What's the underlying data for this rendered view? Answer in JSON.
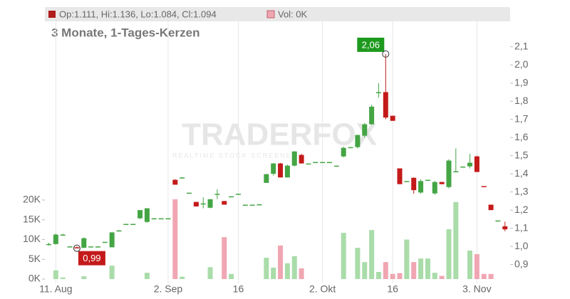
{
  "chart_data": {
    "type": "candlestick",
    "title": "3 Monate, 1-Tages-Kerzen",
    "header": {
      "ohlc": "Op:1.111, Hi:1.136, Lo:1.084, Cl:1.094",
      "volume": "Vol: 0K"
    },
    "watermark": {
      "brand": "TRADERFOX",
      "tagline": "REALTIME STOCK SCREENER"
    },
    "categories": [
      null,
      "11. Aug",
      null,
      null,
      null,
      null,
      null,
      null,
      null,
      null,
      null,
      null,
      null,
      null,
      null,
      null,
      null,
      "2. Sep",
      null,
      null,
      null,
      null,
      null,
      null,
      null,
      null,
      null,
      "16",
      null,
      null,
      null,
      null,
      null,
      null,
      null,
      null,
      null,
      null,
      null,
      "2. Okt",
      null,
      null,
      null,
      null,
      null,
      null,
      null,
      null,
      null,
      "16",
      null,
      null,
      null,
      null,
      null,
      null,
      null,
      null,
      null,
      null,
      null,
      "3. Nov",
      null,
      null,
      null,
      null
    ],
    "open": [
      1.013,
      1.013,
      1.065,
      1.0,
      0.995,
      0.992,
      1.0,
      1.0,
      1.025,
      0.995,
      1.088,
      1.124,
      1.124,
      1.155,
      1.135,
      1.155,
      1.155,
      1.155,
      1.367,
      1.38,
      1.296,
      1.245,
      1.237,
      1.213,
      1.29,
      1.25,
      1.276,
      1.29,
      1.23,
      1.23,
      1.232,
      1.35,
      1.4,
      1.457,
      1.38,
      1.445,
      1.504,
      1.457,
      1.465,
      1.465,
      1.465,
      1.445,
      1.496,
      1.547,
      1.547,
      1.61,
      1.673,
      1.845,
      1.85,
      1.72,
      1.43,
      1.36,
      1.378,
      1.297,
      1.367,
      1.292,
      1.355,
      1.327,
      1.414,
      1.44,
      1.441,
      1.496,
      1.332,
      1.23,
      1.143,
      1.111
    ],
    "high": [
      1.02,
      1.07,
      1.07,
      1.0,
      1.0,
      1.05,
      1.0,
      1.0,
      1.025,
      1.08,
      1.09,
      1.124,
      1.124,
      1.2,
      1.21,
      1.155,
      1.155,
      1.155,
      1.37,
      1.382,
      1.296,
      1.245,
      1.27,
      1.26,
      1.315,
      1.25,
      1.276,
      1.29,
      1.23,
      1.23,
      1.232,
      1.4,
      1.46,
      1.46,
      1.45,
      1.525,
      1.51,
      1.457,
      1.465,
      1.465,
      1.465,
      1.445,
      1.55,
      1.547,
      1.615,
      1.68,
      1.78,
      1.9,
      2.06,
      1.72,
      1.43,
      1.36,
      1.38,
      1.37,
      1.367,
      1.36,
      1.355,
      1.48,
      1.54,
      1.44,
      1.51,
      1.5,
      1.332,
      1.23,
      1.143,
      1.136
    ],
    "low": [
      1.005,
      1.01,
      1.06,
      0.995,
      0.99,
      0.992,
      1.0,
      1.0,
      1.025,
      0.995,
      1.088,
      1.124,
      1.124,
      1.15,
      1.13,
      1.155,
      1.155,
      1.155,
      1.34,
      1.38,
      1.296,
      1.22,
      1.21,
      1.21,
      1.26,
      1.23,
      1.276,
      1.29,
      1.23,
      1.23,
      1.232,
      1.35,
      1.39,
      1.38,
      1.38,
      1.44,
      1.457,
      1.457,
      1.465,
      1.465,
      1.465,
      1.445,
      1.49,
      1.547,
      1.54,
      1.6,
      1.67,
      1.82,
      1.7,
      1.692,
      1.343,
      1.36,
      1.29,
      1.29,
      1.367,
      1.285,
      1.343,
      1.32,
      1.41,
      1.44,
      1.43,
      1.41,
      1.33,
      1.2,
      1.143,
      1.084
    ],
    "close": [
      1.013,
      1.065,
      1.065,
      1.0,
      0.99,
      1.045,
      1.0,
      1.0,
      1.025,
      1.077,
      1.088,
      1.124,
      1.124,
      1.2,
      1.21,
      1.155,
      1.155,
      1.155,
      1.34,
      1.38,
      1.296,
      1.22,
      1.237,
      1.26,
      1.29,
      1.23,
      1.276,
      1.29,
      1.23,
      1.23,
      1.232,
      1.398,
      1.457,
      1.38,
      1.445,
      1.523,
      1.457,
      1.457,
      1.465,
      1.465,
      1.465,
      1.445,
      1.543,
      1.547,
      1.614,
      1.673,
      1.77,
      1.85,
      1.71,
      1.692,
      1.343,
      1.36,
      1.31,
      1.36,
      1.367,
      1.355,
      1.343,
      1.473,
      1.414,
      1.44,
      1.461,
      1.41,
      1.33,
      1.2,
      1.143,
      1.094
    ],
    "volume": [
      0,
      2200,
      400,
      0,
      0,
      700,
      0,
      0,
      0,
      3400,
      0,
      0,
      0,
      0,
      1600,
      0,
      0,
      0,
      20200,
      600,
      0,
      0,
      0,
      3000,
      0,
      10600,
      1300,
      0,
      0,
      0,
      0,
      5400,
      2900,
      8500,
      4000,
      5800,
      2700,
      0,
      0,
      0,
      0,
      0,
      11700,
      0,
      7900,
      4300,
      12400,
      1800,
      4300,
      1300,
      1500,
      10000,
      4300,
      5200,
      5200,
      1600,
      800,
      12600,
      19500,
      0,
      7200,
      6300,
      1300,
      1300,
      0,
      0
    ],
    "ylim": [
      0.82,
      2.24
    ],
    "yticks": [
      {
        "value": 0.9,
        "label": "0,9"
      },
      {
        "value": 1.0,
        "label": "1,0"
      },
      {
        "value": 1.1,
        "label": "1,1"
      },
      {
        "value": 1.2,
        "label": "1,2"
      },
      {
        "value": 1.3,
        "label": "1,3"
      },
      {
        "value": 1.4,
        "label": "1,4"
      },
      {
        "value": 1.5,
        "label": "1,5"
      },
      {
        "value": 1.6,
        "label": "1,6"
      },
      {
        "value": 1.7,
        "label": "1,7"
      },
      {
        "value": 1.8,
        "label": "1,8"
      },
      {
        "value": 1.9,
        "label": "1,9"
      },
      {
        "value": 2.0,
        "label": "2,0"
      },
      {
        "value": 2.1,
        "label": "2,1"
      }
    ],
    "y2lim": [
      0,
      65200
    ],
    "y2ticks": [
      {
        "value": 0,
        "label": "0K"
      },
      {
        "value": 5000,
        "label": "5K"
      },
      {
        "value": 10000,
        "label": "10K"
      },
      {
        "value": 15000,
        "label": "15K"
      },
      {
        "value": 20000,
        "label": "20K"
      }
    ],
    "colors": {
      "up": "#44a544",
      "down": "#c41a1a",
      "volume_up": "#a9dca9",
      "volume_down": "#f0a6b2",
      "grid": "#e6e6e6"
    },
    "annotations": [
      {
        "kind": "high",
        "label": "2,06",
        "value": 2.06
      },
      {
        "kind": "low",
        "label": "0,99",
        "value": 0.99
      }
    ]
  }
}
